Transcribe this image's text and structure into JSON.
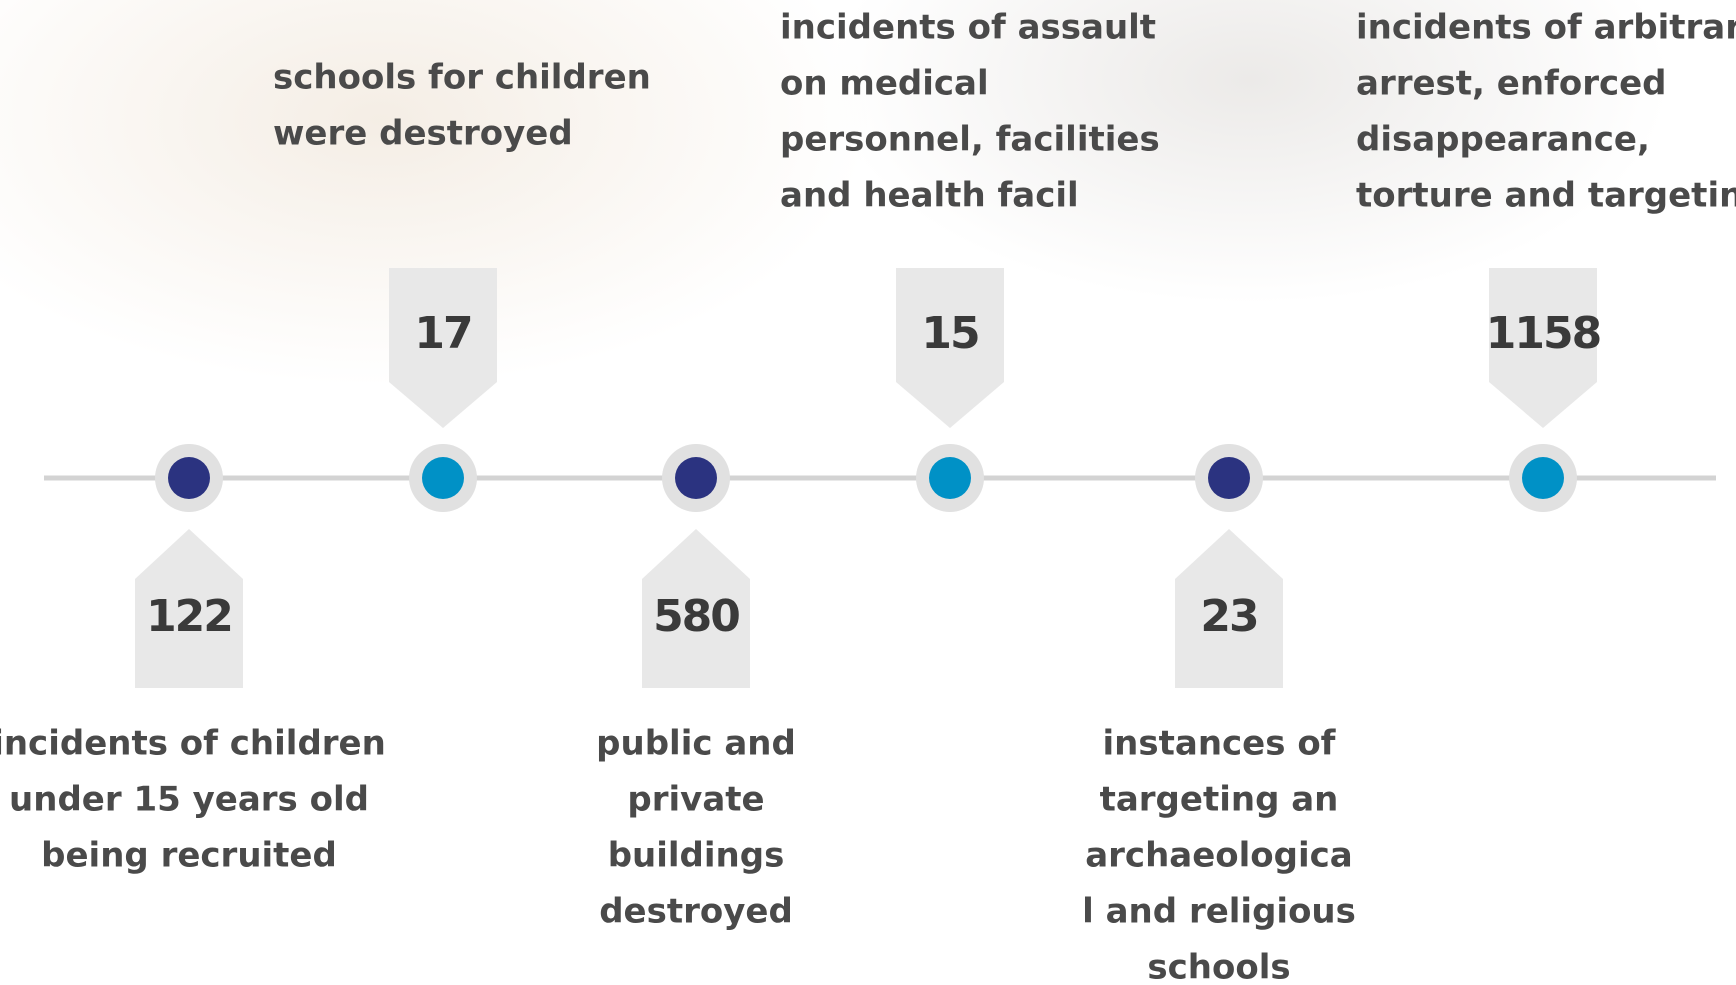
{
  "items": [
    {
      "number": 122,
      "lines": [
        "incidents of children",
        "under 15 years old",
        "being recruited"
      ]
    },
    {
      "number": 17,
      "lines": [
        "schools for children",
        "were destroyed"
      ]
    },
    {
      "number": 580,
      "lines": [
        "public and",
        "private",
        "buildings",
        "destroyed"
      ]
    },
    {
      "number": 15,
      "lines": [
        "incidents of assault",
        "on medical",
        "personnel, facilities",
        "and health facil"
      ]
    },
    {
      "number": 23,
      "lines": [
        "instances of",
        "targeting an",
        "archaeologica",
        "l and religious",
        "schools"
      ]
    },
    {
      "number": 1158,
      "lines": [
        "incidents of arbitrary",
        "arrest, enforced",
        "disappearance,",
        "torture and targeting"
      ]
    }
  ]
}
